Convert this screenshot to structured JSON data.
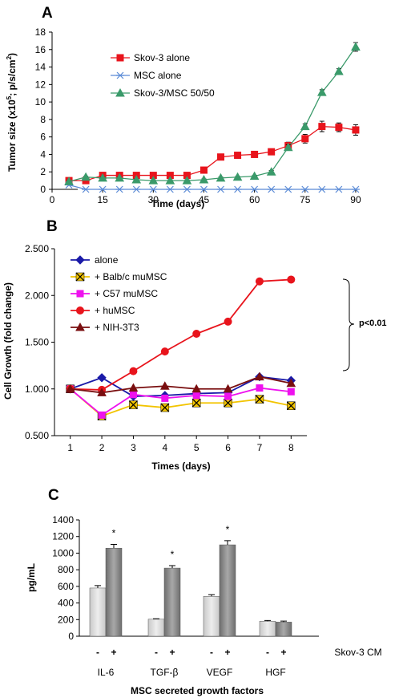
{
  "chart_data": [
    {
      "panel": "A",
      "type": "line",
      "xlabel": "Time (days)",
      "ylabel_parts": [
        "Tumor size (x10",
        "5",
        "; p/s/cm",
        "2",
        ")"
      ],
      "xlim": [
        0,
        95
      ],
      "ylim": [
        0,
        18
      ],
      "xticks": [
        0,
        15,
        30,
        45,
        60,
        75,
        90
      ],
      "yticks": [
        0,
        2,
        4,
        6,
        8,
        10,
        12,
        14,
        16,
        18
      ],
      "grid": false,
      "legend": "top-left",
      "series": [
        {
          "name": "Skov-3 alone",
          "color": "#e8141c",
          "marker": "square",
          "x": [
            5,
            10,
            15,
            20,
            25,
            30,
            35,
            40,
            45,
            50,
            55,
            60,
            65,
            70,
            75,
            80,
            85,
            90
          ],
          "y": [
            1.0,
            1.0,
            1.6,
            1.6,
            1.6,
            1.6,
            1.6,
            1.6,
            2.2,
            3.7,
            3.9,
            4.0,
            4.3,
            5.0,
            5.8,
            7.2,
            7.1,
            6.8
          ],
          "err": [
            0.15,
            0.1,
            0.15,
            0.15,
            0.15,
            0.1,
            0.1,
            0.1,
            0.2,
            0.2,
            0.25,
            0.2,
            0.3,
            0.4,
            0.5,
            0.6,
            0.5,
            0.6
          ]
        },
        {
          "name": "MSC alone",
          "color": "#5b8bd6",
          "marker": "asterisk",
          "x": [
            5,
            10,
            15,
            20,
            25,
            30,
            35,
            40,
            45,
            50,
            55,
            60,
            65,
            70,
            75,
            80,
            85,
            90
          ],
          "y": [
            0.5,
            0,
            0,
            0,
            0,
            0,
            0,
            0,
            0,
            0,
            0,
            0,
            0,
            0,
            0,
            0,
            0,
            0
          ],
          "err": []
        },
        {
          "name": "Skov-3/MSC 50/50",
          "color": "#3a9a6a",
          "marker": "triangle",
          "x": [
            5,
            10,
            15,
            20,
            25,
            30,
            35,
            40,
            45,
            50,
            55,
            60,
            65,
            70,
            75,
            80,
            85,
            90
          ],
          "y": [
            0.9,
            1.4,
            1.3,
            1.3,
            1.1,
            1.0,
            1.0,
            1.0,
            1.1,
            1.3,
            1.4,
            1.5,
            2.0,
            4.8,
            7.2,
            11.1,
            13.5,
            16.3
          ],
          "err": [
            0.1,
            0.1,
            0.1,
            0.1,
            0.1,
            0.1,
            0.1,
            0.1,
            0.1,
            0.1,
            0.1,
            0.1,
            0.15,
            0.3,
            0.3,
            0.3,
            0.3,
            0.5
          ]
        }
      ]
    },
    {
      "panel": "B",
      "type": "line",
      "xlabel": "Times (days)",
      "ylabel": "Cell Growth (fold change)",
      "xlim": [
        0.5,
        8.5
      ],
      "ylim": [
        0.5,
        2.5
      ],
      "xticks": [
        1,
        2,
        3,
        4,
        5,
        6,
        7,
        8
      ],
      "ytick_labels": [
        "0.500",
        "1.000",
        "1.500",
        "2.000",
        "2.500"
      ],
      "yticks": [
        0.5,
        1.0,
        1.5,
        2.0,
        2.5
      ],
      "grid": false,
      "legend": "top-left",
      "annotation": "p<0.01",
      "series": [
        {
          "name": "alone",
          "color": "#1a1aa8",
          "marker": "diamond",
          "marker_fill": "#1a1aa8",
          "x": [
            1,
            2,
            3,
            4,
            5,
            6,
            7,
            8
          ],
          "y": [
            1.0,
            1.12,
            0.92,
            0.93,
            0.95,
            0.96,
            1.13,
            1.09
          ]
        },
        {
          "name": "+ Balb/c muMSC",
          "color": "#f2c400",
          "marker": "xbox",
          "marker_fill": "#f2c400",
          "x": [
            1,
            2,
            3,
            4,
            5,
            6,
            7,
            8
          ],
          "y": [
            1.0,
            0.71,
            0.83,
            0.8,
            0.85,
            0.85,
            0.89,
            0.82
          ]
        },
        {
          "name": "+ C57 muMSC",
          "color": "#ee11ee",
          "marker": "square",
          "marker_fill": "#ee11ee",
          "x": [
            1,
            2,
            3,
            4,
            5,
            6,
            7,
            8
          ],
          "y": [
            1.0,
            0.72,
            0.94,
            0.9,
            0.93,
            0.92,
            1.01,
            0.97
          ]
        },
        {
          "name": "+ huMSC",
          "color": "#e8141c",
          "marker": "circle",
          "marker_fill": "#e8141c",
          "x": [
            1,
            2,
            3,
            4,
            5,
            6,
            7,
            8
          ],
          "y": [
            1.0,
            0.99,
            1.19,
            1.4,
            1.59,
            1.72,
            2.15,
            2.17
          ]
        },
        {
          "name": "+ NIH-3T3",
          "color": "#7a0f10",
          "marker": "triangle",
          "marker_fill": "#7a0f10",
          "x": [
            1,
            2,
            3,
            4,
            5,
            6,
            7,
            8
          ],
          "y": [
            1.0,
            0.96,
            1.01,
            1.03,
            1.0,
            1.0,
            1.13,
            1.06
          ]
        }
      ]
    },
    {
      "panel": "C",
      "type": "bar",
      "ylabel": "pg/mL",
      "xlabel": "MSC secreted growth factors",
      "ylim": [
        0,
        1400
      ],
      "yticks": [
        0,
        200,
        400,
        600,
        800,
        1000,
        1200,
        1400
      ],
      "grid": false,
      "categories": [
        "IL-6",
        "TGF-β",
        "VEGF",
        "HGF"
      ],
      "condition_labels": [
        "-",
        "+"
      ],
      "condition_title": "Skov-3 CM",
      "series": [
        {
          "name": "-",
          "color": "#c8c8c8",
          "values": [
            580,
            205,
            480,
            180
          ],
          "err": [
            30,
            5,
            20,
            10
          ]
        },
        {
          "name": "+",
          "color": "#6e6e6e",
          "values": [
            1060,
            820,
            1100,
            170
          ],
          "err": [
            45,
            30,
            50,
            12
          ]
        }
      ],
      "significance": [
        "*",
        "*",
        "*",
        ""
      ]
    }
  ],
  "panel_labels": [
    "A",
    "B",
    "C"
  ],
  "colors": {
    "axis": "#000000",
    "errbar": "#000000"
  }
}
